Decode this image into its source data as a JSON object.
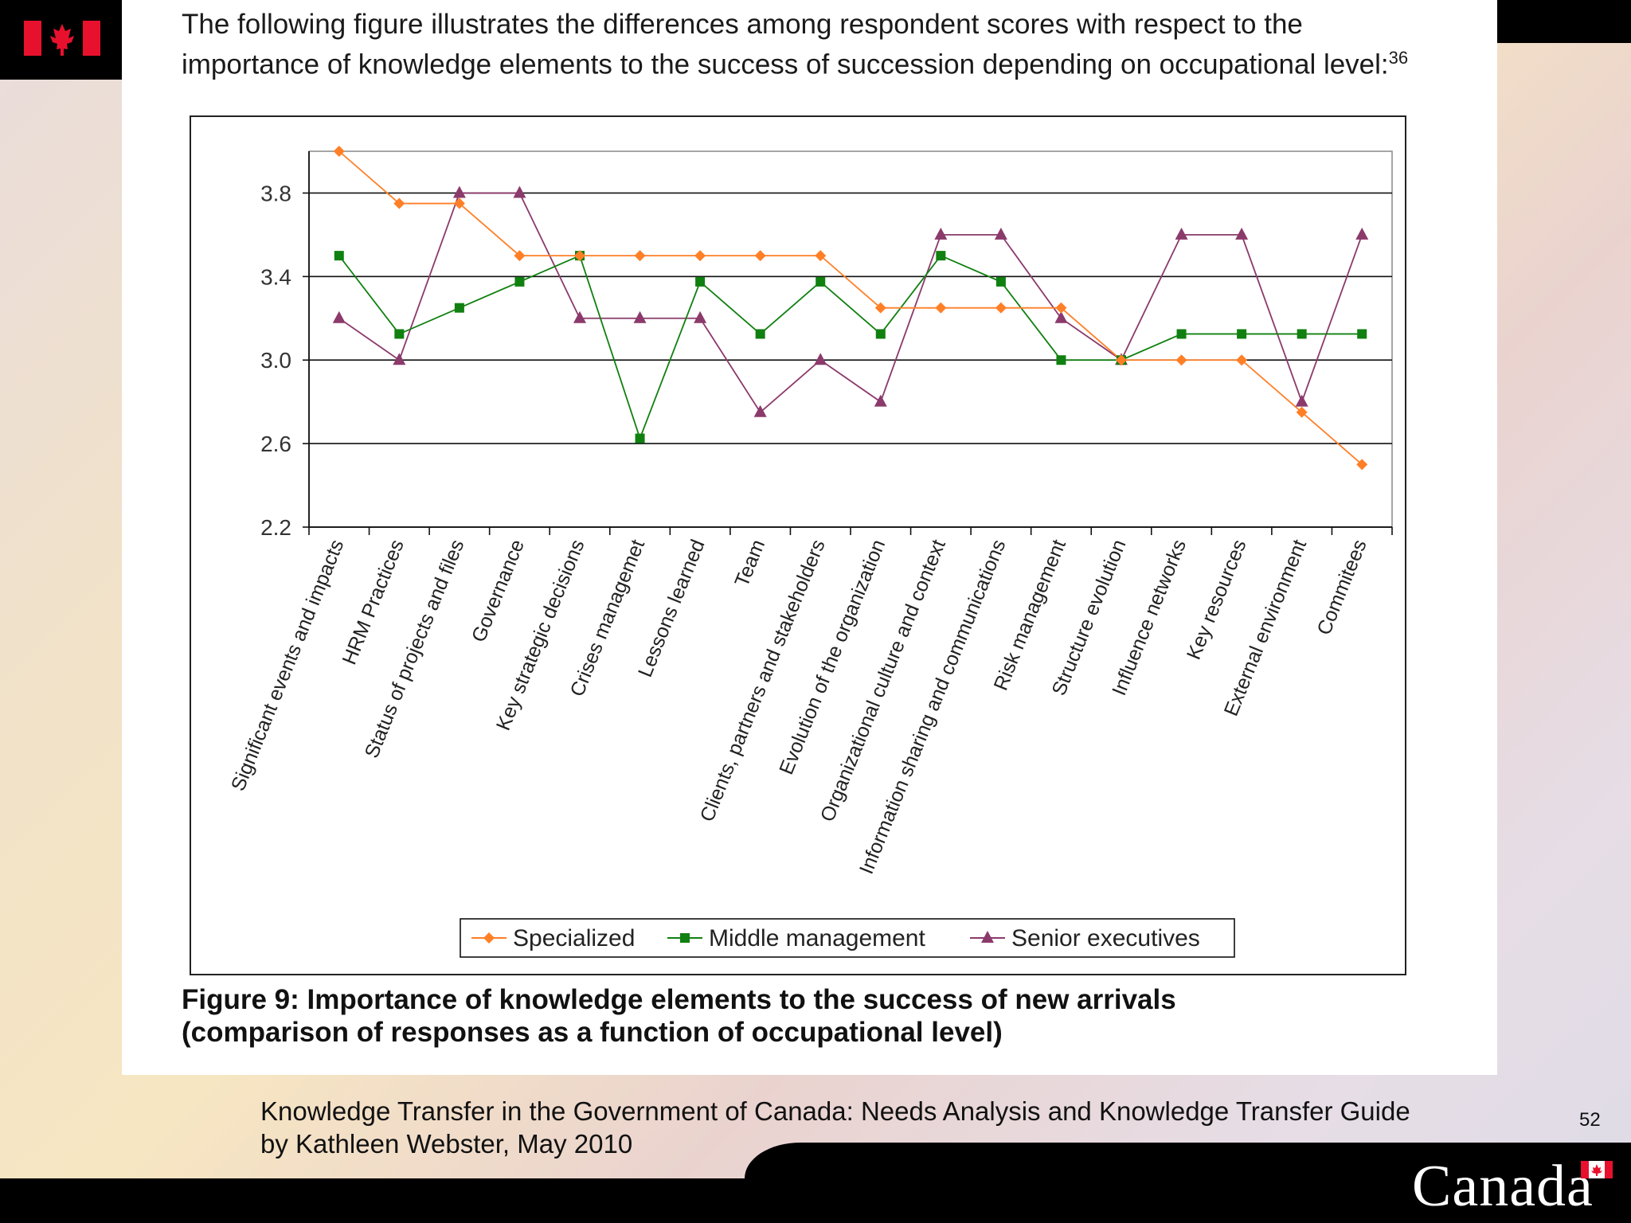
{
  "intro": {
    "text": "The following figure illustrates the differences among respondent scores with respect to the importance of knowledge elements to the success of succession depending on occupational level:",
    "footnote": "36"
  },
  "caption": {
    "line1": "Figure 9: Importance of knowledge elements to the success of new arrivals",
    "line2": "(comparison of responses as a function of occupational level)"
  },
  "footer": {
    "line1": "Knowledge Transfer in the Government of Canada: Needs Analysis and Knowledge Transfer Guide",
    "line2": "by Kathleen Webster, May 2010",
    "page_number": "52",
    "wordmark": "Canada"
  },
  "colors": {
    "specialized": "#ff7f27",
    "middle": "#108010",
    "senior": "#8b3a6b",
    "flag_red": "#e8112d"
  },
  "chart_data": {
    "type": "line",
    "title": "",
    "xlabel": "",
    "ylabel": "",
    "ylim": [
      2.2,
      4.0
    ],
    "yticks": [
      "3.8",
      "3.4",
      "3.0",
      "2.6",
      "2.2"
    ],
    "ytick_values": [
      3.8,
      3.4,
      3.0,
      2.6,
      2.2
    ],
    "grid": true,
    "legend_position": "bottom-center",
    "categories": [
      "Significant events and impacts",
      "HRM Practices",
      "Status of projects and files",
      "Governance",
      "Key strategic decisions",
      "Crises managemet",
      "Lessons learned",
      "Team",
      "Clients, partners and stakeholders",
      "Evolution of the organization",
      "Organizational culture and context",
      "Information sharing and communications",
      "Risk management",
      "Structure evolution",
      "Influence networks",
      "Key resources",
      "External environment",
      "Commitees"
    ],
    "series": [
      {
        "name": "Specialized",
        "marker": "diamond",
        "values": [
          4.0,
          3.75,
          3.75,
          3.5,
          3.5,
          3.5,
          3.5,
          3.5,
          3.5,
          3.25,
          3.25,
          3.25,
          3.25,
          3.0,
          3.0,
          3.0,
          2.75,
          2.5
        ]
      },
      {
        "name": "Middle management",
        "marker": "square",
        "values": [
          3.5,
          3.125,
          3.25,
          3.375,
          3.5,
          2.625,
          3.375,
          3.125,
          3.375,
          3.125,
          3.5,
          3.375,
          3.0,
          3.0,
          3.125,
          3.125,
          3.125,
          3.125
        ]
      },
      {
        "name": "Senior executives",
        "marker": "triangle",
        "values": [
          3.2,
          3.0,
          3.8,
          3.8,
          3.2,
          3.2,
          3.2,
          2.75,
          3.0,
          2.8,
          3.6,
          3.6,
          3.2,
          3.0,
          3.6,
          3.6,
          2.8,
          3.6
        ]
      }
    ]
  }
}
